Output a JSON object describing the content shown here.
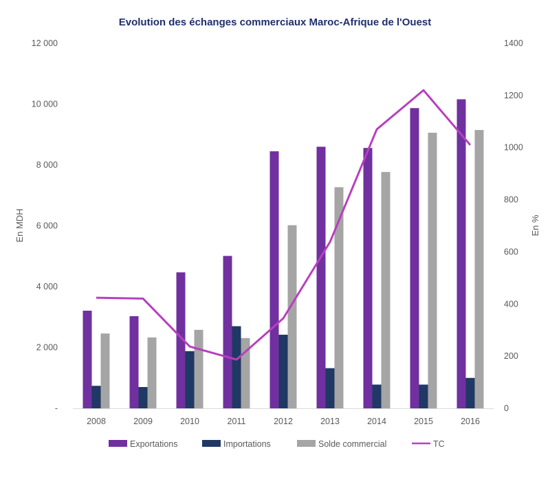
{
  "chart_data": {
    "type": "bar",
    "title": "Evolution des échanges commerciaux Maroc-Afrique de l'Ouest",
    "categories": [
      "2008",
      "2009",
      "2010",
      "2011",
      "2012",
      "2013",
      "2014",
      "2015",
      "2016"
    ],
    "series": [
      {
        "name": "Exportations",
        "type": "bar",
        "axis": "left",
        "color": "#7030a0",
        "values": [
          3210,
          3030,
          4470,
          5010,
          8450,
          8600,
          8560,
          9870,
          10160
        ]
      },
      {
        "name": "Importations",
        "type": "bar",
        "axis": "left",
        "color": "#203864",
        "values": [
          740,
          700,
          1880,
          2700,
          2420,
          1320,
          780,
          780,
          1000
        ]
      },
      {
        "name": "Solde commercial",
        "type": "bar",
        "axis": "left",
        "color": "#a5a5a5",
        "values": [
          2460,
          2330,
          2580,
          2310,
          6020,
          7270,
          7770,
          9060,
          9150
        ]
      },
      {
        "name": "TC",
        "type": "line",
        "axis": "right",
        "color": "#b83fbf",
        "values": [
          424,
          421,
          237,
          187,
          345,
          638,
          1070,
          1220,
          1010
        ]
      }
    ],
    "xlabel": "",
    "ylabel": "En MDH",
    "ylabel_right": "En %",
    "ylim": [
      0,
      12000
    ],
    "ylim_right": [
      0,
      1400
    ],
    "yticks": [
      0,
      2000,
      4000,
      6000,
      8000,
      10000,
      12000
    ],
    "yticks_labels": [
      "-",
      "2 000",
      "4 000",
      "6 000",
      "8 000",
      "10 000",
      "12 000"
    ],
    "yticks_right": [
      0,
      200,
      400,
      600,
      800,
      1000,
      1200,
      1400
    ],
    "yticks_right_labels": [
      "0",
      "200",
      "400",
      "600",
      "800",
      "1000",
      "1200",
      "1400"
    ],
    "grid": false,
    "legend": "bottom"
  }
}
